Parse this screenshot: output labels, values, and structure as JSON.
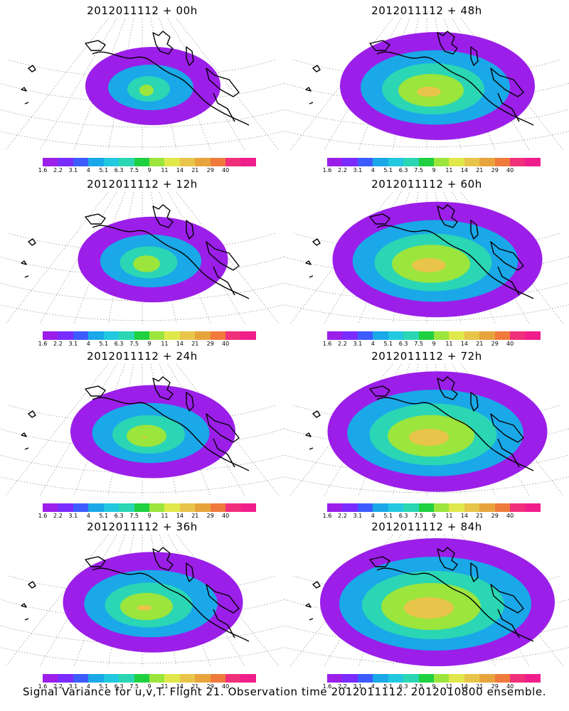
{
  "caption": "Signal Variance for u,v,T. Flight 21. Observation time 2012011112. 2012010800 ensemble.",
  "colorbar": {
    "tick_labels": [
      "1.6",
      "2.2",
      "3.1",
      "4",
      "5.1",
      "6.3",
      "7.5",
      "9",
      "11",
      "14",
      "21",
      "29",
      "40"
    ],
    "colors": [
      "#9b1fe8",
      "#7a2bff",
      "#3d5cff",
      "#1aa8e8",
      "#22c8e0",
      "#2bd6b4",
      "#1fd040",
      "#9be53c",
      "#e0e84a",
      "#e8c54a",
      "#e8a43c",
      "#f07a3c",
      "#f0307a",
      "#f01e8a"
    ]
  },
  "panels": [
    {
      "title": "2012011112 + 00h",
      "spread": 0.0
    },
    {
      "title": "2012011112 + 48h",
      "spread": 0.6
    },
    {
      "title": "2012011112 + 12h",
      "spread": 0.15
    },
    {
      "title": "2012011112 + 60h",
      "spread": 0.75
    },
    {
      "title": "2012011112 + 24h",
      "spread": 0.3
    },
    {
      "title": "2012011112 + 72h",
      "spread": 0.85
    },
    {
      "title": "2012011112 + 36h",
      "spread": 0.45
    },
    {
      "title": "2012011112 + 84h",
      "spread": 1.0
    }
  ]
}
